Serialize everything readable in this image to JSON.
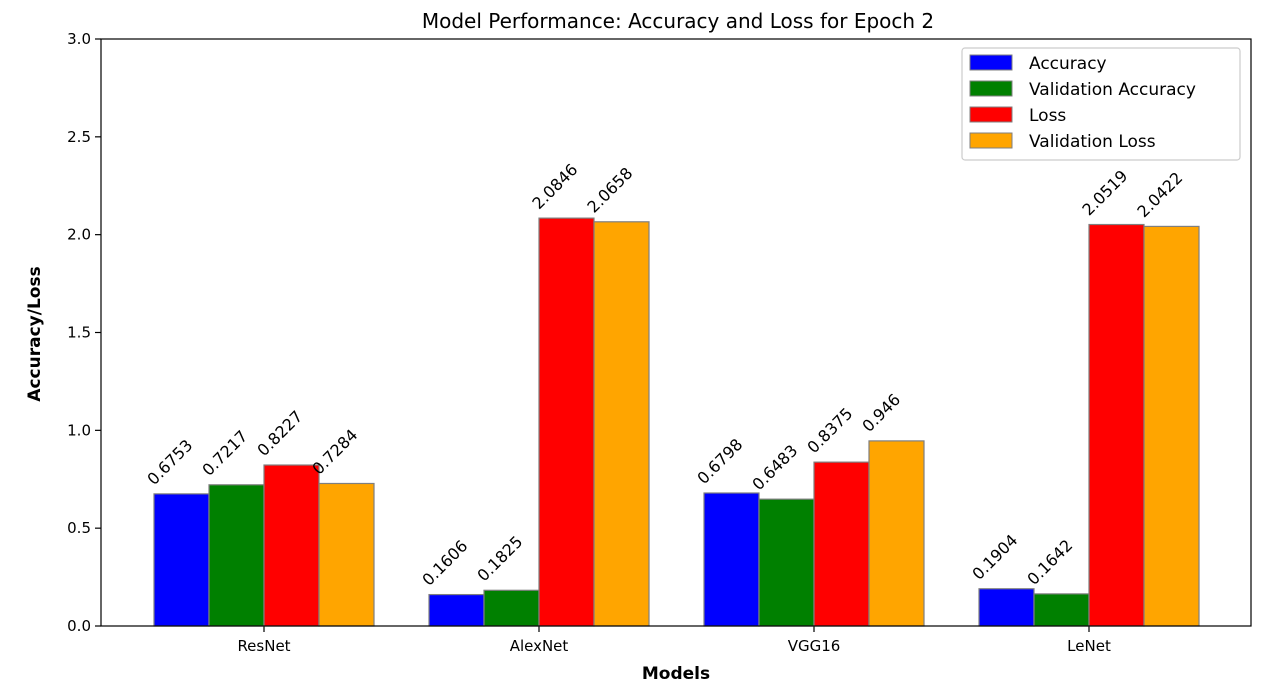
{
  "chart_data": {
    "type": "bar",
    "title": "Model Performance: Accuracy and Loss for Epoch 2",
    "xlabel": "Models",
    "ylabel": "Accuracy/Loss",
    "categories": [
      "ResNet",
      "AlexNet",
      "VGG16",
      "LeNet"
    ],
    "ylim": [
      0,
      3
    ],
    "yticks": [
      "0.0",
      "0.5",
      "1.0",
      "1.5",
      "2.0",
      "2.5",
      "3.0"
    ],
    "legend_position": "top-right",
    "grid": false,
    "series": [
      {
        "name": "Accuracy",
        "color": "#0000ff",
        "values": [
          0.6753,
          0.1606,
          0.6798,
          0.1904
        ],
        "labels": [
          "0.6753",
          "0.1606",
          "0.6798",
          "0.1904"
        ]
      },
      {
        "name": "Validation Accuracy",
        "color": "#008000",
        "values": [
          0.7217,
          0.1825,
          0.6483,
          0.1642
        ],
        "labels": [
          "0.7217",
          "0.1825",
          "0.6483",
          "0.1642"
        ]
      },
      {
        "name": "Loss",
        "color": "#ff0000",
        "values": [
          0.8227,
          2.0846,
          0.8375,
          2.0519
        ],
        "labels": [
          "0.8227",
          "2.0846",
          "0.8375",
          "2.0519"
        ]
      },
      {
        "name": "Validation Loss",
        "color": "#ffa500",
        "values": [
          0.7284,
          2.0658,
          0.946,
          2.0422
        ],
        "labels": [
          "0.7284",
          "2.0658",
          "0.946",
          "2.0422"
        ]
      }
    ]
  }
}
